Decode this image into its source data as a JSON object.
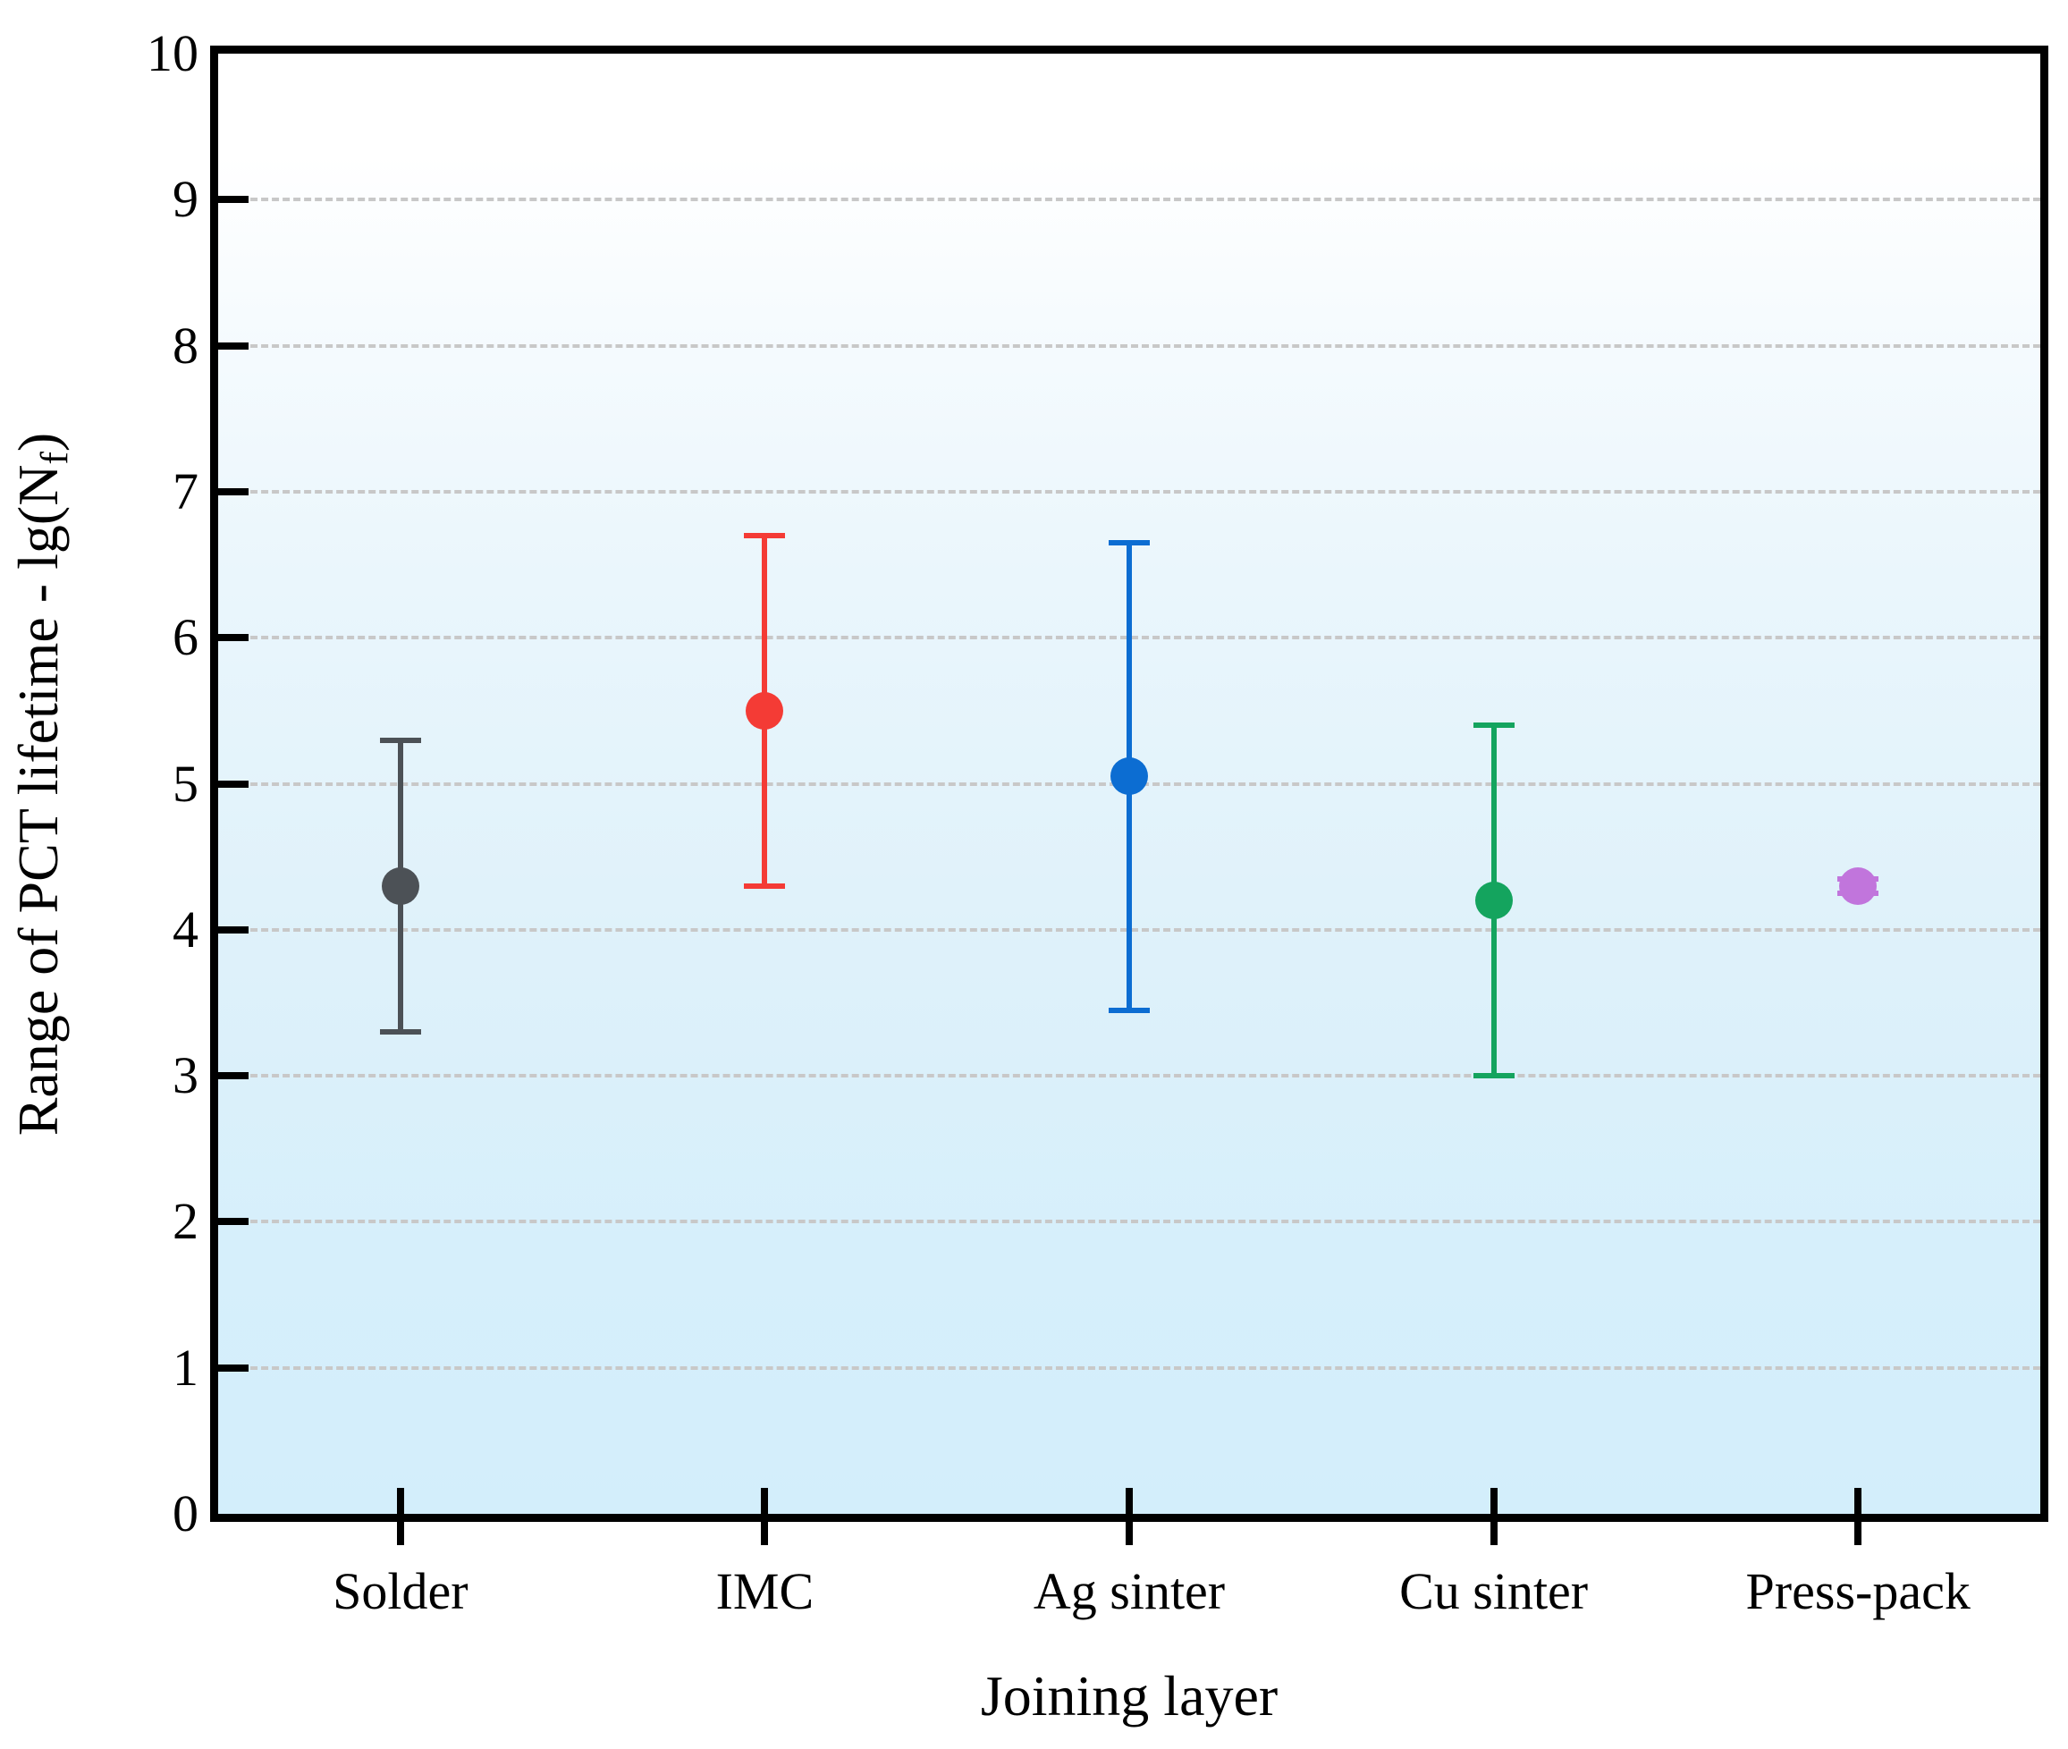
{
  "chart_data": {
    "type": "scatter",
    "title": "",
    "xlabel": "Joining layer",
    "ylabel": "Range of PCT lifetime - lg(Nf)",
    "ylabel_parts": {
      "main": "Range of PCT lifetime - lg(N",
      "sub": "f",
      "close": ")"
    },
    "categories": [
      "Solder",
      "IMC",
      "Ag sinter",
      "Cu sinter",
      "Press-pack"
    ],
    "series": [
      {
        "name": "Solder",
        "center": 4.3,
        "lower": 3.3,
        "upper": 5.3,
        "color": "#4c5156"
      },
      {
        "name": "IMC",
        "center": 5.5,
        "lower": 4.3,
        "upper": 6.7,
        "color": "#f43b35"
      },
      {
        "name": "Ag sinter",
        "center": 5.05,
        "lower": 3.45,
        "upper": 6.65,
        "color": "#0c6dd2"
      },
      {
        "name": "Cu sinter",
        "center": 4.2,
        "lower": 3.0,
        "upper": 5.4,
        "color": "#14a45e"
      },
      {
        "name": "Press-pack",
        "center": 4.3,
        "lower": 4.25,
        "upper": 4.35,
        "color": "#c175dc"
      }
    ],
    "ylim": [
      0,
      10
    ],
    "yticks": [
      0,
      1,
      2,
      3,
      4,
      5,
      6,
      7,
      8,
      9,
      10
    ],
    "gridlines": [
      1,
      2,
      3,
      4,
      5,
      6,
      7,
      8,
      9
    ],
    "grid_color": "#c8c8c8",
    "grid_style": "dashed",
    "legend_position": "none",
    "frame_color": "#000000",
    "background_top": "#ffffff",
    "background_bottom": "#d3eefb"
  }
}
